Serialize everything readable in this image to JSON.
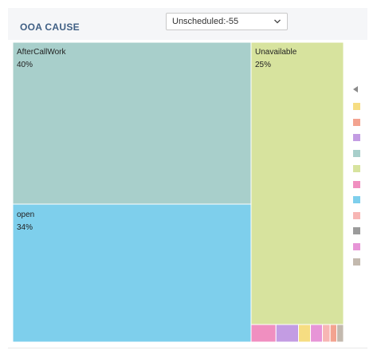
{
  "widget": {
    "title": "OOA CAUSE",
    "dropdown_value": "Unscheduled:-55"
  },
  "chart_data": {
    "type": "treemap",
    "tiles": [
      {
        "label": "AfterCallWork",
        "percent_label": "40%",
        "value": 40,
        "color": "#a8cfcb"
      },
      {
        "label": "open",
        "percent_label": "34%",
        "value": 34,
        "color": "#7ecfec"
      },
      {
        "label": "Unavailable",
        "percent_label": "25%",
        "value": 25,
        "color": "#d7e39e"
      }
    ],
    "small_tiles": [
      {
        "value": 0.52,
        "color": "#f08fc0"
      },
      {
        "value": 0.47,
        "color": "#c39ce3"
      },
      {
        "value": 0.25,
        "color": "#f6dd82"
      },
      {
        "value": 0.25,
        "color": "#e795d7"
      },
      {
        "value": 0.16,
        "color": "#f7b6b4"
      },
      {
        "value": 0.14,
        "color": "#f3a390"
      },
      {
        "value": 0.14,
        "color": "#c3b9ae"
      }
    ],
    "legend_colors": [
      "#f6dd82",
      "#f3a390",
      "#c39ce3",
      "#a8cfcb",
      "#d7e39e",
      "#f08fc0",
      "#7ecfec",
      "#f7b6b4",
      "#9b9b9b",
      "#e795d7",
      "#c3b9ae"
    ],
    "legend_position": "right"
  }
}
